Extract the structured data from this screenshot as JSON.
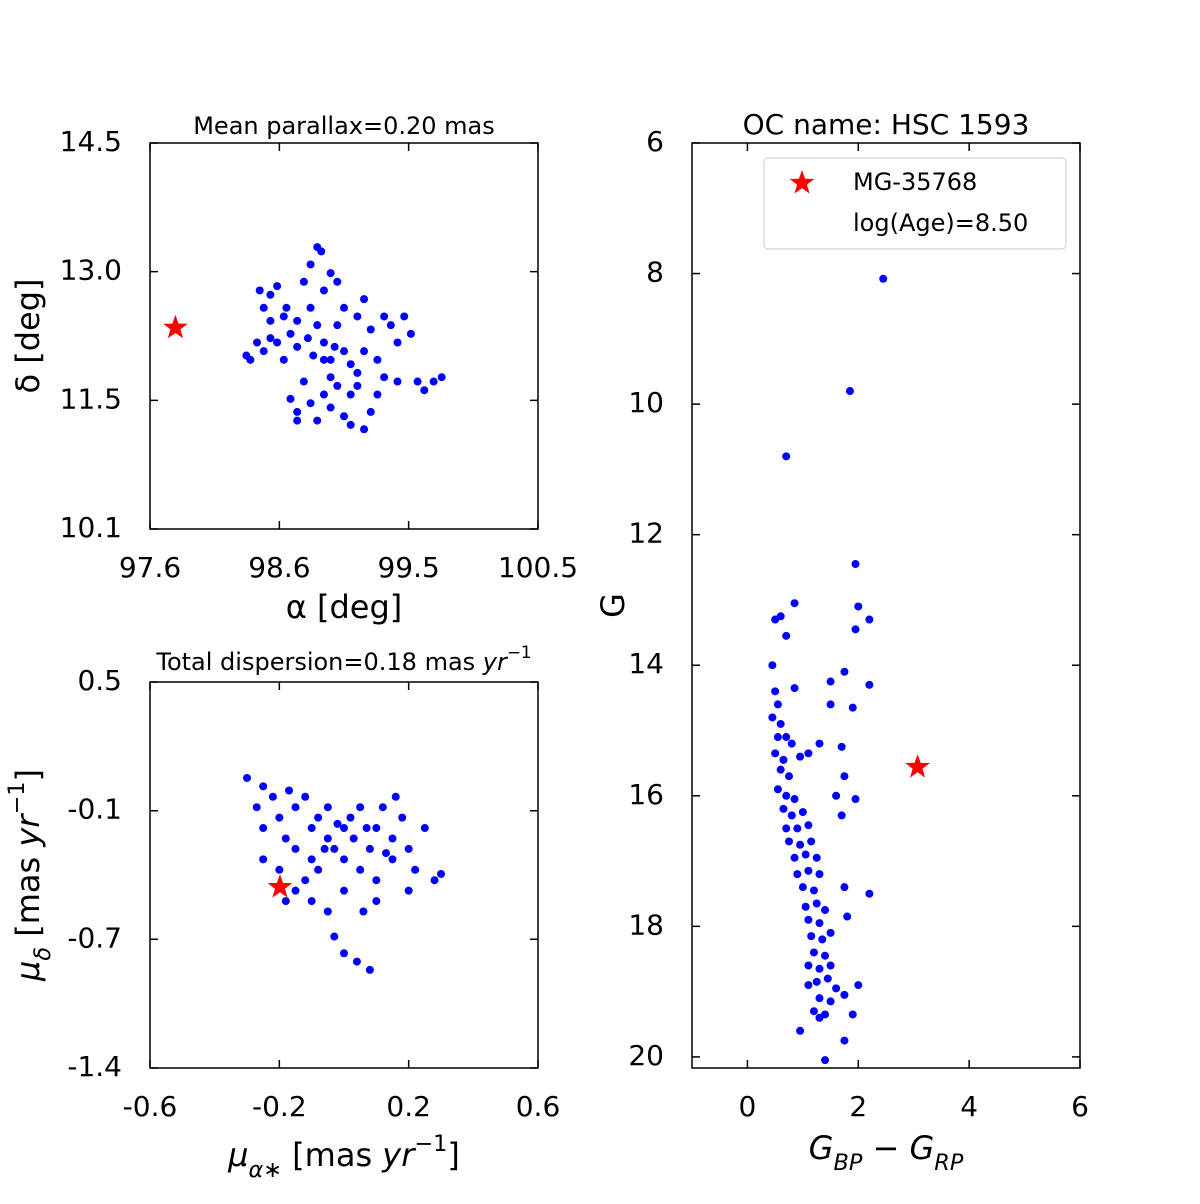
{
  "chart_data": [
    {
      "type": "scatter",
      "title": "Mean parallax=0.20 mas",
      "xlabel": "α [deg]",
      "ylabel": "δ [deg]",
      "xlim": [
        97.6,
        100.5
      ],
      "ylim": [
        10.05,
        14.5
      ],
      "xticks": [
        97.6,
        {
          "value": 98.567,
          "label": "98.6"
        },
        {
          "value": 99.533,
          "label": "99.5"
        },
        100.5
      ],
      "yticks": [
        {
          "value": 10.05,
          "label": "10.1"
        },
        {
          "value": 11.533,
          "label": "11.5"
        },
        {
          "value": 13.017,
          "label": "13.0"
        },
        14.5
      ],
      "series": [
        {
          "color": "#0000ff",
          "marker": "circle",
          "x": [
            98.32,
            98.4,
            98.45,
            98.5,
            98.45,
            98.5,
            98.55,
            98.6,
            98.62,
            98.65,
            98.7,
            98.7,
            98.75,
            98.8,
            98.85,
            98.88,
            98.9,
            98.8,
            98.85,
            98.9,
            98.95,
            99.0,
            99.05,
            98.95,
            98.9,
            98.8,
            98.75,
            98.7,
            98.65,
            98.7,
            98.85,
            98.95,
            99.05,
            99.1,
            99.15,
            99.2,
            99.25,
            99.3,
            99.35,
            99.4,
            99.5,
            99.55,
            99.45,
            99.35,
            99.45,
            99.6,
            99.65,
            99.72,
            99.78,
            99.25,
            99.2,
            99.1,
            99.0,
            99.05,
            99.1,
            98.98,
            98.9,
            98.82,
            98.78,
            99.15,
            99.2,
            98.6,
            98.55,
            98.35,
            98.42,
            98.5,
            98.95,
            99.0,
            99.15,
            99.3
          ],
          "y": [
            12.05,
            12.2,
            12.1,
            12.25,
            12.6,
            12.75,
            12.85,
            12.5,
            12.6,
            12.3,
            12.45,
            12.15,
            12.9,
            13.1,
            13.3,
            13.25,
            12.8,
            12.6,
            12.4,
            12.2,
            12.0,
            12.4,
            12.6,
            11.8,
            11.6,
            11.5,
            11.75,
            11.4,
            11.55,
            11.3,
            11.3,
            11.45,
            11.35,
            11.6,
            11.85,
            12.1,
            12.35,
            12.0,
            12.5,
            12.4,
            12.5,
            12.3,
            12.2,
            11.8,
            11.75,
            11.75,
            11.65,
            11.75,
            11.8,
            11.4,
            11.2,
            11.25,
            11.7,
            12.1,
            11.95,
            12.15,
            12.0,
            12.05,
            12.25,
            12.5,
            12.7,
            12.0,
            12.2,
            12.0,
            12.8,
            12.45,
            13.0,
            12.9,
            11.7,
            11.6
          ]
        },
        {
          "color": "#ff0000",
          "marker": "star",
          "x": [
            97.79
          ],
          "y": [
            12.37
          ]
        }
      ]
    },
    {
      "type": "scatter",
      "title": [
        {
          "text": "Total dispersion=0.18 mas "
        },
        {
          "text": "yr",
          "style": "italic"
        },
        {
          "text": "−1",
          "style": "sup"
        }
      ],
      "xlabel": [
        {
          "text": "μ",
          "style": "italic"
        },
        {
          "text": "α∗",
          "style": "sub"
        },
        {
          "text": " [mas "
        },
        {
          "text": "yr",
          "style": "italic"
        },
        {
          "text": "−1",
          "style": "sup"
        },
        {
          "text": "]"
        }
      ],
      "ylabel": [
        {
          "text": "μ",
          "style": "italic"
        },
        {
          "text": "δ",
          "style": "sub"
        },
        {
          "text": " [mas "
        },
        {
          "text": "yr",
          "style": "italic"
        },
        {
          "text": "−1",
          "style": "sup"
        },
        {
          "text": "]"
        }
      ],
      "xlim": [
        -0.6,
        0.6
      ],
      "ylim": [
        -1.35,
        0.5
      ],
      "xticks": [
        -0.6,
        -0.2,
        0.2,
        0.6
      ],
      "yticks": [
        {
          "value": -1.35,
          "label": "-1.4"
        },
        {
          "value": -0.733,
          "label": "-0.7"
        },
        {
          "value": -0.117,
          "label": "-0.1"
        },
        0.5
      ],
      "series": [
        {
          "color": "#0000ff",
          "marker": "circle",
          "x": [
            -0.3,
            -0.25,
            -0.27,
            -0.25,
            -0.22,
            -0.2,
            -0.18,
            -0.15,
            -0.15,
            -0.12,
            -0.1,
            -0.1,
            -0.08,
            -0.05,
            -0.05,
            -0.03,
            0,
            0,
            0.02,
            0.03,
            0.05,
            0.05,
            0.08,
            0.1,
            0.1,
            0.12,
            0.15,
            0.15,
            0.18,
            0.2,
            0.22,
            0.25,
            0.28,
            0.3,
            0.2,
            0.1,
            0,
            -0.05,
            -0.1,
            -0.15,
            -0.2,
            -0.25,
            -0.12,
            -0.03,
            0,
            0.04,
            0.08,
            -0.18,
            0.06,
            -0.08,
            0.13,
            -0.02,
            0.07,
            -0.06,
            0.16,
            -0.17
          ],
          "y": [
            0.04,
            0.0,
            -0.1,
            -0.2,
            -0.05,
            -0.15,
            -0.25,
            -0.1,
            -0.3,
            -0.05,
            -0.2,
            -0.35,
            -0.15,
            -0.25,
            -0.1,
            -0.3,
            -0.2,
            -0.35,
            -0.15,
            -0.25,
            -0.4,
            -0.1,
            -0.3,
            -0.2,
            -0.45,
            -0.1,
            -0.25,
            -0.35,
            -0.15,
            -0.3,
            -0.4,
            -0.2,
            -0.45,
            -0.42,
            -0.5,
            -0.55,
            -0.5,
            -0.6,
            -0.55,
            -0.5,
            -0.4,
            -0.35,
            -0.45,
            -0.72,
            -0.8,
            -0.84,
            -0.88,
            -0.55,
            -0.6,
            -0.4,
            -0.32,
            -0.18,
            -0.2,
            -0.3,
            -0.05,
            -0.02
          ]
        },
        {
          "color": "#ff0000",
          "marker": "star",
          "x": [
            -0.198
          ],
          "y": [
            -0.483
          ]
        }
      ]
    },
    {
      "type": "scatter",
      "title": "OC name: HSC 1593",
      "ylabel": "G",
      "xlabel": [
        {
          "text": "G",
          "style": "italic"
        },
        {
          "text": "BP",
          "style": "sub"
        },
        {
          "text": " − "
        },
        {
          "text": "G",
          "style": "italic"
        },
        {
          "text": "RP",
          "style": "sub"
        }
      ],
      "xlim": [
        -1,
        6
      ],
      "ylim": [
        20.17,
        6
      ],
      "xticks": [
        0,
        2,
        4,
        6
      ],
      "yticks": [
        6,
        8,
        10,
        12,
        14,
        16,
        18,
        20
      ],
      "legend": "upper right",
      "legend_note": "log(Age)=8.50",
      "series": [
        {
          "color": "#0000ff",
          "marker": "circle",
          "x": [
            2.45,
            1.85,
            0.7,
            1.95,
            0.85,
            0.5,
            0.6,
            0.7,
            2.0,
            1.95,
            2.2,
            0.45,
            1.75,
            1.5,
            2.2,
            0.5,
            0.55,
            0.85,
            1.5,
            1.9,
            0.45,
            0.6,
            0.55,
            0.7,
            0.8,
            1.3,
            1.7,
            0.5,
            0.65,
            0.95,
            1.1,
            0.6,
            0.75,
            1.75,
            0.55,
            0.7,
            0.85,
            1.6,
            1.95,
            0.65,
            0.8,
            1.0,
            1.7,
            0.7,
            0.9,
            1.1,
            0.75,
            0.95,
            1.15,
            0.85,
            1.05,
            1.25,
            0.9,
            1.1,
            1.3,
            1.0,
            1.2,
            1.75,
            2.2,
            1.05,
            1.25,
            1.4,
            1.1,
            1.3,
            1.8,
            1.15,
            1.35,
            1.5,
            1.2,
            1.4,
            1.1,
            1.3,
            1.5,
            1.25,
            1.45,
            1.6,
            1.1,
            1.3,
            1.5,
            1.75,
            2.0,
            1.2,
            1.4,
            1.9,
            0.95,
            1.3,
            1.75,
            1.4
          ],
          "y": [
            8.08,
            9.8,
            10.8,
            12.45,
            13.05,
            13.3,
            13.25,
            13.55,
            13.1,
            13.45,
            13.3,
            14.0,
            14.1,
            14.25,
            14.3,
            14.4,
            14.6,
            14.35,
            14.6,
            14.65,
            14.8,
            14.9,
            15.1,
            15.1,
            15.2,
            15.2,
            15.25,
            15.35,
            15.45,
            15.4,
            15.35,
            15.6,
            15.7,
            15.7,
            15.9,
            16.0,
            16.05,
            16.0,
            16.05,
            16.2,
            16.3,
            16.25,
            16.3,
            16.5,
            16.5,
            16.45,
            16.7,
            16.75,
            16.7,
            16.95,
            16.9,
            16.95,
            17.2,
            17.15,
            17.2,
            17.4,
            17.45,
            17.4,
            17.5,
            17.7,
            17.65,
            17.75,
            17.9,
            17.95,
            17.85,
            18.15,
            18.2,
            18.1,
            18.4,
            18.45,
            18.6,
            18.65,
            18.6,
            18.85,
            18.8,
            18.95,
            18.9,
            19.1,
            19.15,
            19.05,
            18.9,
            19.3,
            19.35,
            19.35,
            19.6,
            19.4,
            19.75,
            20.05
          ]
        },
        {
          "name": "MG-35768",
          "color": "#ff0000",
          "marker": "star",
          "x": [
            3.07
          ],
          "y": [
            15.56
          ]
        }
      ]
    }
  ]
}
